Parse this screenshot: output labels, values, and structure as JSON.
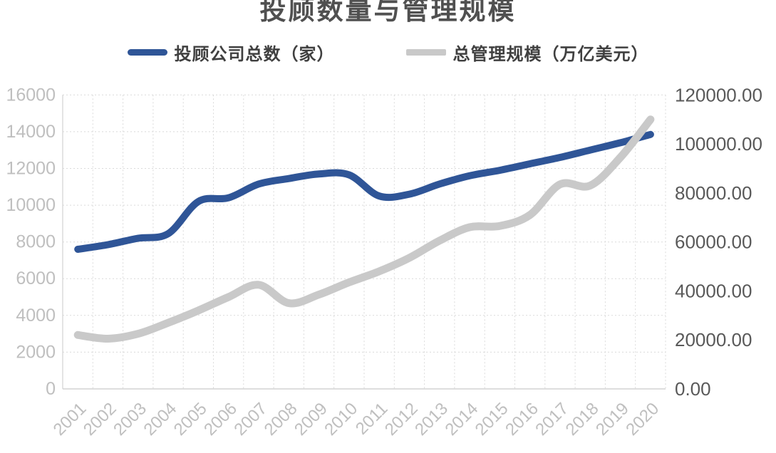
{
  "chart": {
    "title": "投顾数量与管理规模",
    "legend": [
      {
        "name": "投顾公司总数（家）",
        "color": "#2F5597"
      },
      {
        "name": "总管理规模（万亿美元）",
        "color": "#C9C9C9"
      }
    ]
  },
  "chart_data": {
    "type": "line",
    "title": "投顾数量与管理规模",
    "smooth": true,
    "grid": true,
    "legend_position": "top",
    "categories": [
      "2001",
      "2002",
      "2003",
      "2004",
      "2005",
      "2006",
      "2007",
      "2008",
      "2009",
      "2010",
      "2011",
      "2012",
      "2013",
      "2014",
      "2015",
      "2016",
      "2017",
      "2018",
      "2019",
      "2020"
    ],
    "series": [
      {
        "name": "投顾公司总数（家）",
        "axis": "left",
        "color": "#2F5597",
        "values": [
          7600,
          7850,
          8200,
          8450,
          10200,
          10400,
          11150,
          11450,
          11700,
          11650,
          10500,
          10600,
          11150,
          11600,
          11900,
          12250,
          12600,
          13000,
          13400,
          13850
        ]
      },
      {
        "name": "总管理规模（万亿美元）",
        "axis": "right",
        "color": "#C9C9C9",
        "values": [
          22000,
          20500,
          22500,
          27000,
          32000,
          37500,
          42500,
          35000,
          38500,
          43500,
          48000,
          53500,
          60500,
          66000,
          66500,
          71000,
          83500,
          83000,
          94500,
          110000
        ]
      }
    ],
    "left_axis": {
      "min": 0,
      "max": 16000,
      "step": 2000,
      "tick_labels": [
        "0",
        "2000",
        "4000",
        "6000",
        "8000",
        "10000",
        "12000",
        "14000",
        "16000"
      ]
    },
    "right_axis": {
      "min": 0,
      "max": 120000,
      "step": 20000,
      "tick_labels": [
        "0.00",
        "20000.00",
        "40000.00",
        "60000.00",
        "80000.00",
        "100000.00",
        "120000.00"
      ]
    }
  },
  "colors": {
    "title_text": "#505050",
    "legend_text": "#404040",
    "left_axis_text": "#BFBFBF",
    "right_axis_text": "#595959",
    "x_axis_text": "#BFBFBF",
    "gridline": "#DADADA",
    "axis_line": "#D3D3D3",
    "series_blue": "#2F5597",
    "series_gray": "#C9C9C9"
  }
}
